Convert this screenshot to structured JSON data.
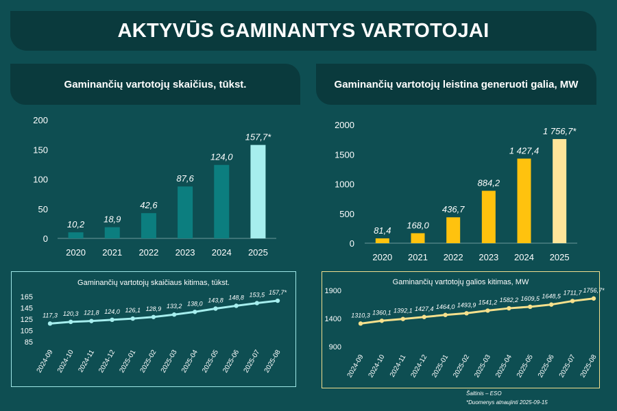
{
  "header": {
    "title": "AKTYVŪS GAMINANTYS VARTOTOJAI"
  },
  "panels": {
    "left_title": "Gaminančių vartotojų skaičius, tūkst.",
    "right_title": "Gaminančių vartotojų leistina generuoti galia, MW",
    "left_small_title": "Gaminančių vartotojų skaičiaus kitimas, tūkst.",
    "right_small_title": "Gaminančių vartotojų galios kitimas, MW"
  },
  "footer": {
    "source": "Šaltinis – ESO",
    "note": "*Duomenys atnaujinti 2025-09-15"
  },
  "colors": {
    "bg": "#0e4e52",
    "banner": "#0a3a3d",
    "teal_bar": "#0c7e7f",
    "teal_highlight": "#a6eeee",
    "gold_bar": "#ffc20e",
    "gold_highlight": "#ffe59a",
    "teal_line": "#a6eeee",
    "gold_line": "#f6e08c"
  },
  "chart_data": [
    {
      "type": "bar",
      "categories": [
        "2020",
        "2021",
        "2022",
        "2023",
        "2024",
        "2025"
      ],
      "values": [
        10.2,
        18.9,
        42.6,
        87.6,
        124.0,
        157.7
      ],
      "labels": [
        "10,2",
        "18,9",
        "42,6",
        "87,6",
        "124,0",
        "157,7*"
      ],
      "yticks": [
        "0",
        "50",
        "100",
        "150",
        "200"
      ],
      "ylim": [
        0,
        200
      ],
      "grid": false
    },
    {
      "type": "bar",
      "categories": [
        "2020",
        "2021",
        "2022",
        "2023",
        "2024",
        "2025"
      ],
      "values": [
        81.4,
        168.0,
        436.7,
        884.2,
        1427.4,
        1756.7
      ],
      "labels": [
        "81,4",
        "168,0",
        "436,7",
        "884,2",
        "1 427,4",
        "1 756,7*"
      ],
      "yticks": [
        "0",
        "500",
        "1000",
        "1500",
        "2000"
      ],
      "ylim": [
        0,
        2000
      ],
      "grid": false
    },
    {
      "type": "line",
      "x": [
        "2024-09",
        "2024-10",
        "2024-11",
        "2024-12",
        "2025-01",
        "2025-02",
        "2025-03",
        "2025-04",
        "2025-05",
        "2025-06",
        "2025-07",
        "2025-08"
      ],
      "values": [
        117.3,
        120.3,
        121.8,
        124.0,
        126.1,
        128.9,
        133.2,
        138.0,
        143.8,
        148.8,
        153.5,
        157.7
      ],
      "labels": [
        "117,3",
        "120,3",
        "121,8",
        "124,0",
        "126,1",
        "128,9",
        "133,2",
        "138,0",
        "143,8",
        "148,8",
        "153,5",
        "157,7*"
      ],
      "yticks": [
        "85",
        "105",
        "125",
        "145",
        "165"
      ],
      "ylim": [
        85,
        165
      ],
      "grid": false
    },
    {
      "type": "line",
      "x": [
        "2024-09",
        "2024-10",
        "2024-11",
        "2024-12",
        "2025-01",
        "2025-02",
        "2025-03",
        "2025-04",
        "2025-05",
        "2025-06",
        "2025-07",
        "2025-08"
      ],
      "values": [
        1310.3,
        1360.1,
        1392.1,
        1427.4,
        1464.0,
        1493.9,
        1541.2,
        1582.2,
        1609.5,
        1648.5,
        1711.7,
        1756.7
      ],
      "labels": [
        "1310,3",
        "1360,1",
        "1392,1",
        "1427,4",
        "1464,0",
        "1493,9",
        "1541,2",
        "1582,2",
        "1609,5",
        "1648,5",
        "1711,7",
        "1756,7*"
      ],
      "yticks": [
        "900",
        "1400",
        "1900"
      ],
      "ylim": [
        900,
        1900
      ],
      "grid": false
    }
  ]
}
